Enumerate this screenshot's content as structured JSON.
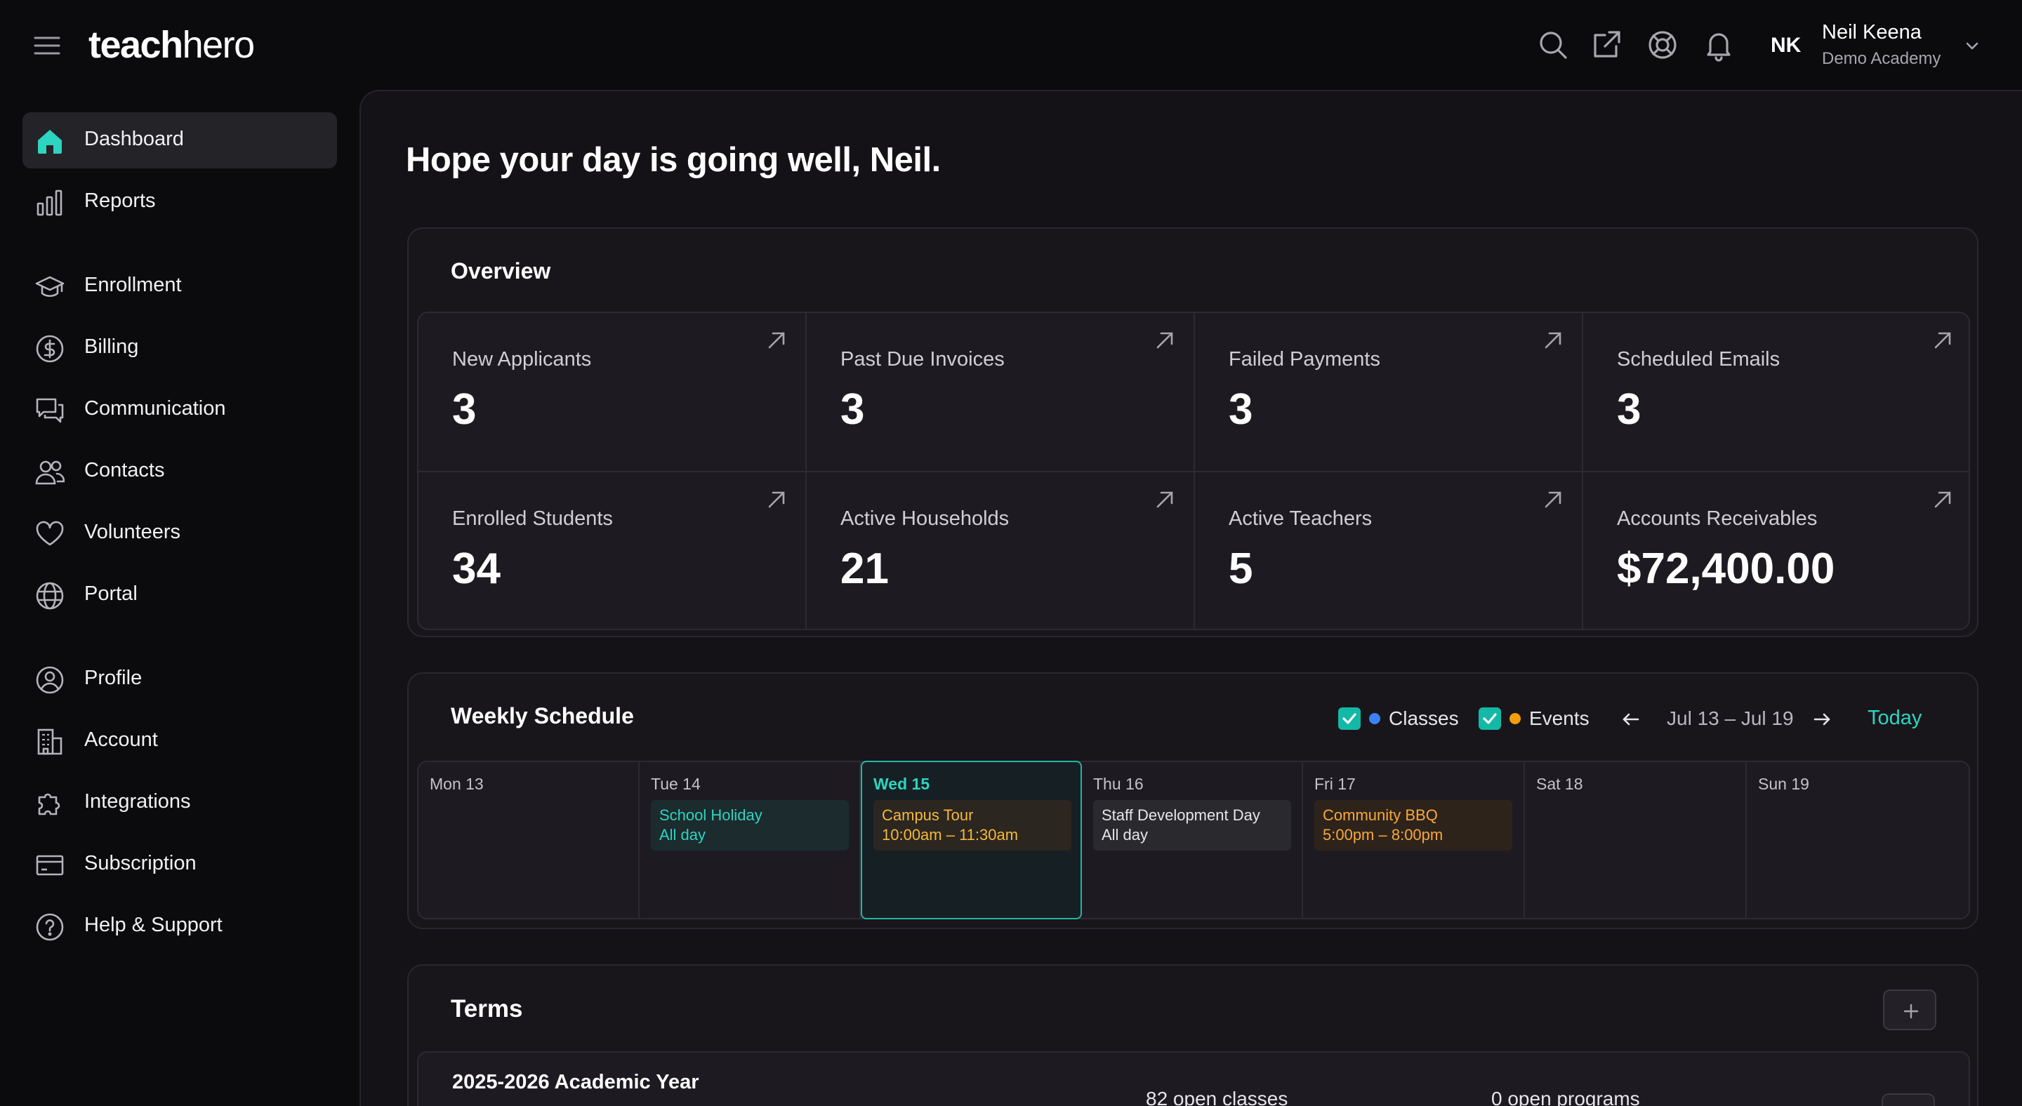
{
  "app": {
    "logo_bold": "teach",
    "logo_light": "hero"
  },
  "user": {
    "initials": "NK",
    "name": "Neil Keena",
    "organization": "Demo Academy"
  },
  "header_icons": [
    "search-icon",
    "external-link-icon",
    "support-icon",
    "bell-icon"
  ],
  "sidebar": {
    "items": [
      {
        "label": "Dashboard",
        "icon": "home-icon",
        "active": true
      },
      {
        "label": "Reports",
        "icon": "bar-chart-icon"
      },
      {
        "label": "Enrollment",
        "icon": "graduation-cap-icon"
      },
      {
        "label": "Billing",
        "icon": "dollar-circle-icon"
      },
      {
        "label": "Communication",
        "icon": "chat-bubbles-icon"
      },
      {
        "label": "Contacts",
        "icon": "users-icon"
      },
      {
        "label": "Volunteers",
        "icon": "heart-icon"
      },
      {
        "label": "Portal",
        "icon": "globe-icon"
      },
      {
        "label": "Profile",
        "icon": "user-circle-icon"
      },
      {
        "label": "Account",
        "icon": "building-icon"
      },
      {
        "label": "Integrations",
        "icon": "puzzle-icon"
      },
      {
        "label": "Subscription",
        "icon": "credit-card-icon"
      },
      {
        "label": "Help & Support",
        "icon": "question-circle-icon"
      }
    ]
  },
  "greeting": "Hope your day is going well, Neil.",
  "overview": {
    "title": "Overview",
    "stats": [
      {
        "label": "New Applicants",
        "value": "3"
      },
      {
        "label": "Past Due Invoices",
        "value": "3"
      },
      {
        "label": "Failed Payments",
        "value": "3"
      },
      {
        "label": "Scheduled Emails",
        "value": "3"
      },
      {
        "label": "Enrolled Students",
        "value": "34"
      },
      {
        "label": "Active Households",
        "value": "21"
      },
      {
        "label": "Active Teachers",
        "value": "5"
      },
      {
        "label": "Accounts Receivables",
        "value": "$72,400.00"
      }
    ]
  },
  "schedule": {
    "title": "Weekly Schedule",
    "legend": {
      "classes_label": "Classes",
      "classes_color": "#3b82f6",
      "classes_checked": true,
      "events_label": "Events",
      "events_color": "#f59e0b",
      "events_checked": true
    },
    "range": "Jul 13 – Jul 19",
    "today_label": "Today",
    "days": [
      {
        "label": "Mon 13"
      },
      {
        "label": "Tue 14",
        "event": {
          "title": "School Holiday",
          "sub": "All day",
          "style": "teal"
        }
      },
      {
        "label": "Wed 15",
        "today": true,
        "event": {
          "title": "Campus Tour",
          "sub": "10:00am – 11:30am",
          "style": "amber"
        }
      },
      {
        "label": "Thu 16",
        "event": {
          "title": "Staff Development Day",
          "sub": "All day",
          "style": "gray"
        }
      },
      {
        "label": "Fri 17",
        "event": {
          "title": "Community BBQ",
          "sub": "5:00pm – 8:00pm",
          "style": "orange"
        }
      },
      {
        "label": "Sat 18"
      },
      {
        "label": "Sun 19"
      }
    ]
  },
  "terms": {
    "title": "Terms",
    "rows": [
      {
        "name": "2025-2026 Academic Year",
        "open_classes": "82 open classes",
        "open_programs": "0 open programs"
      }
    ]
  }
}
